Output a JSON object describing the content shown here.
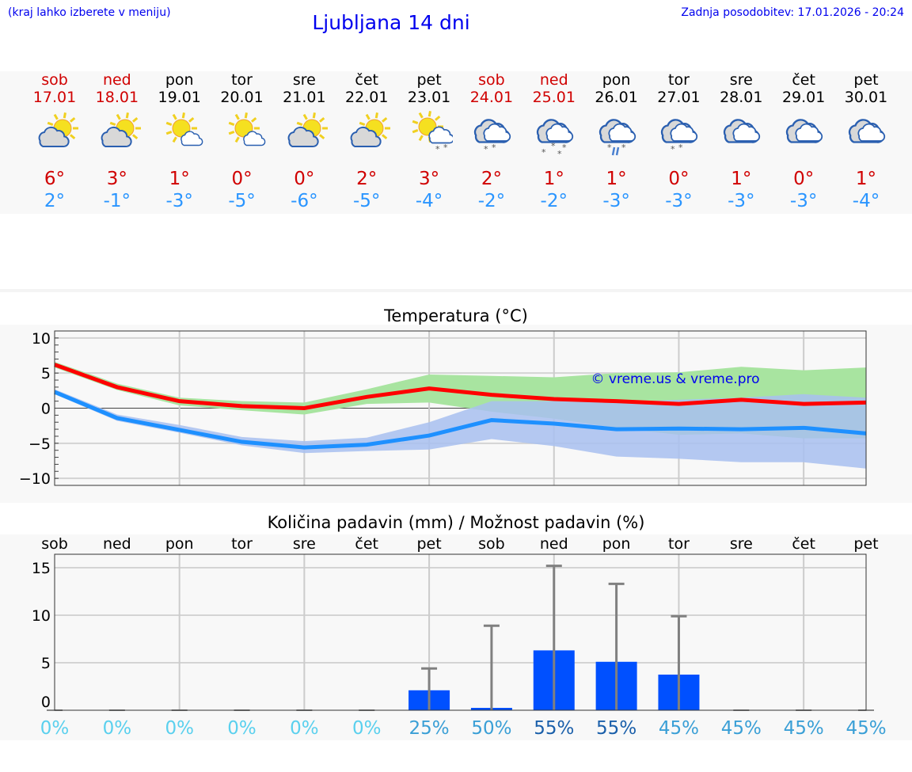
{
  "header": {
    "hint": "(kraj lahko izberete v meniju)",
    "title": "Ljubljana 14 dni",
    "updated": "Zadnja posodobitev: 17.01.2026 - 20:24"
  },
  "days": [
    {
      "name": "sob",
      "date": "17.01",
      "weekend": true,
      "icon": "sun-cloud",
      "max": "6°",
      "min": "2°"
    },
    {
      "name": "ned",
      "date": "18.01",
      "weekend": true,
      "icon": "sun-cloud",
      "max": "3°",
      "min": "-1°"
    },
    {
      "name": "pon",
      "date": "19.01",
      "weekend": false,
      "icon": "sun-small-cloud",
      "max": "1°",
      "min": "-3°"
    },
    {
      "name": "tor",
      "date": "20.01",
      "weekend": false,
      "icon": "sun-small-cloud",
      "max": "0°",
      "min": "-5°"
    },
    {
      "name": "sre",
      "date": "21.01",
      "weekend": false,
      "icon": "sun-cloud",
      "max": "0°",
      "min": "-6°"
    },
    {
      "name": "čet",
      "date": "22.01",
      "weekend": false,
      "icon": "sun-cloud",
      "max": "2°",
      "min": "-5°"
    },
    {
      "name": "pet",
      "date": "23.01",
      "weekend": false,
      "icon": "sun-cloud-snow",
      "max": "3°",
      "min": "-4°"
    },
    {
      "name": "sob",
      "date": "24.01",
      "weekend": true,
      "icon": "cloud-snow",
      "max": "2°",
      "min": "-2°"
    },
    {
      "name": "ned",
      "date": "25.01",
      "weekend": true,
      "icon": "cloud-heavy-snow",
      "max": "1°",
      "min": "-2°"
    },
    {
      "name": "pon",
      "date": "26.01",
      "weekend": false,
      "icon": "cloud-sleet",
      "max": "1°",
      "min": "-3°"
    },
    {
      "name": "tor",
      "date": "27.01",
      "weekend": false,
      "icon": "cloud-snow",
      "max": "0°",
      "min": "-3°"
    },
    {
      "name": "sre",
      "date": "28.01",
      "weekend": false,
      "icon": "cloud",
      "max": "1°",
      "min": "-3°"
    },
    {
      "name": "čet",
      "date": "29.01",
      "weekend": false,
      "icon": "cloud",
      "max": "0°",
      "min": "-3°"
    },
    {
      "name": "pet",
      "date": "30.01",
      "weekend": false,
      "icon": "cloud",
      "max": "1°",
      "min": "-4°"
    }
  ],
  "colors": {
    "max": "#ff0000",
    "min": "#1e90ff",
    "maxBand": "#a8e4a0",
    "minBand": "#a8c0f0",
    "bar": "#0050ff",
    "err": "#808080"
  },
  "chart_data": [
    {
      "type": "line",
      "title": "Temperatura (°C)",
      "watermark": "© vreme.us & vreme.pro",
      "ylim": [
        -11,
        11
      ],
      "yticks": [
        "10",
        "5",
        "0",
        "−5",
        "−10"
      ],
      "ytick_values": [
        10,
        5,
        0,
        -5,
        -10
      ],
      "series": [
        {
          "name": "max",
          "values": [
            6.2,
            3.0,
            1.0,
            0.3,
            0.0,
            1.6,
            2.8,
            1.9,
            1.3,
            1.0,
            0.6,
            1.2,
            0.6,
            0.8
          ],
          "band_high": [
            6.6,
            3.5,
            1.5,
            1.0,
            0.8,
            2.7,
            4.8,
            4.6,
            4.4,
            5.0,
            5.1,
            5.9,
            5.4,
            5.8
          ],
          "band_low": [
            5.8,
            2.6,
            0.4,
            -0.3,
            -0.9,
            0.6,
            0.8,
            -0.5,
            -1.5,
            -2.8,
            -3.8,
            -3.6,
            -4.3,
            -4.3
          ]
        },
        {
          "name": "min",
          "values": [
            2.3,
            -1.4,
            -3.1,
            -4.8,
            -5.6,
            -5.2,
            -3.9,
            -1.7,
            -2.2,
            -3.0,
            -2.9,
            -3.0,
            -2.8,
            -3.6
          ],
          "band_high": [
            2.7,
            -0.9,
            -2.4,
            -4.1,
            -4.7,
            -4.2,
            -2.0,
            1.0,
            1.0,
            0.8,
            1.2,
            1.5,
            2.0,
            1.5
          ],
          "band_low": [
            2.0,
            -1.8,
            -3.5,
            -5.3,
            -6.4,
            -6.1,
            -5.9,
            -4.4,
            -5.4,
            -6.9,
            -7.2,
            -7.7,
            -7.7,
            -8.6
          ]
        }
      ]
    },
    {
      "type": "bar",
      "title": "Količina padavin (mm) / Možnost padavin (%)",
      "categories": [
        "sob",
        "ned",
        "pon",
        "tor",
        "sre",
        "čet",
        "pet",
        "sob",
        "ned",
        "pon",
        "tor",
        "sre",
        "čet",
        "pet"
      ],
      "ylim": [
        0,
        16.5
      ],
      "yticks": [
        "15",
        "10",
        "5",
        "0"
      ],
      "ytick_values": [
        15,
        10,
        5,
        0
      ],
      "values": [
        0,
        0,
        0,
        0,
        0,
        0,
        2.1,
        0.25,
        6.3,
        5.1,
        3.75,
        0,
        0,
        0
      ],
      "error_high": [
        0,
        0,
        0,
        0,
        0,
        0,
        4.4,
        8.9,
        15.2,
        13.3,
        9.9,
        0,
        0,
        0
      ],
      "probability": [
        "0%",
        "0%",
        "0%",
        "0%",
        "0%",
        "0%",
        "25%",
        "50%",
        "55%",
        "55%",
        "45%",
        "45%",
        "45%",
        "45%"
      ],
      "probability_colors": [
        "#5ad0ee",
        "#5ad0ee",
        "#5ad0ee",
        "#5ad0ee",
        "#5ad0ee",
        "#5ad0ee",
        "#3a9fd6",
        "#3a9fd6",
        "#1a5faa",
        "#1a5faa",
        "#3a9fd6",
        "#3a9fd6",
        "#3a9fd6",
        "#3a9fd6"
      ]
    }
  ]
}
